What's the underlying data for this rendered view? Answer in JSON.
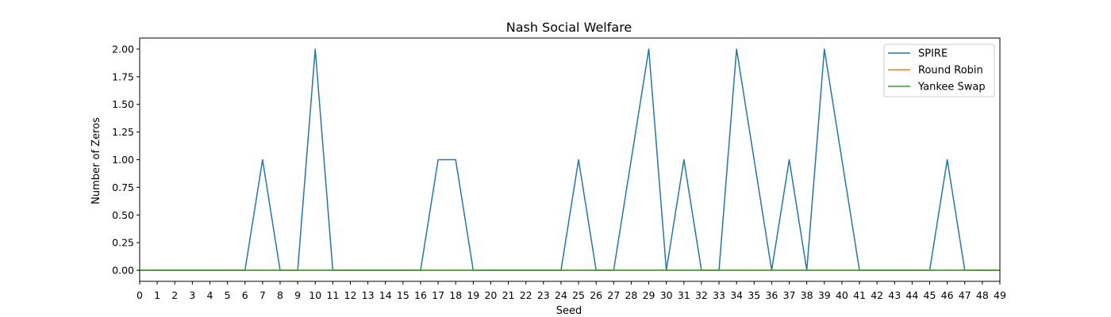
{
  "chart_data": {
    "type": "line",
    "title": "Nash Social Welfare",
    "xlabel": "Seed",
    "ylabel": "Number of Zeros",
    "xlim": [
      0,
      49
    ],
    "ylim": [
      -0.1,
      2.1
    ],
    "xticks": [
      0,
      1,
      2,
      3,
      4,
      5,
      6,
      7,
      8,
      9,
      10,
      11,
      12,
      13,
      14,
      15,
      16,
      17,
      18,
      19,
      20,
      21,
      22,
      23,
      24,
      25,
      26,
      27,
      28,
      29,
      30,
      31,
      32,
      33,
      34,
      35,
      36,
      37,
      38,
      39,
      40,
      41,
      42,
      43,
      44,
      45,
      46,
      47,
      48,
      49
    ],
    "yticks": [
      "0.00",
      "0.25",
      "0.50",
      "0.75",
      "1.00",
      "1.25",
      "1.50",
      "1.75",
      "2.00"
    ],
    "legend_position": "top-right",
    "grid": false,
    "x": [
      0,
      1,
      2,
      3,
      4,
      5,
      6,
      7,
      8,
      9,
      10,
      11,
      12,
      13,
      14,
      15,
      16,
      17,
      18,
      19,
      20,
      21,
      22,
      23,
      24,
      25,
      26,
      27,
      28,
      29,
      30,
      31,
      32,
      33,
      34,
      35,
      36,
      37,
      38,
      39,
      40,
      41,
      42,
      43,
      44,
      45,
      46,
      47,
      48,
      49
    ],
    "series": [
      {
        "name": "SPIRE",
        "color": "#1f77b4",
        "values": [
          0,
          0,
          0,
          0,
          0,
          0,
          0,
          1,
          0,
          0,
          2,
          0,
          0,
          0,
          0,
          0,
          0,
          1,
          1,
          0,
          0,
          0,
          0,
          0,
          0,
          1,
          0,
          0,
          1,
          2,
          0,
          1,
          0,
          0,
          2,
          1,
          0,
          1,
          0,
          2,
          1,
          0,
          0,
          0,
          0,
          0,
          1,
          0,
          0,
          0
        ]
      },
      {
        "name": "Round Robin",
        "color": "#ff7f0e",
        "values": [
          0,
          0,
          0,
          0,
          0,
          0,
          0,
          0,
          0,
          0,
          0,
          0,
          0,
          0,
          0,
          0,
          0,
          0,
          0,
          0,
          0,
          0,
          0,
          0,
          0,
          0,
          0,
          0,
          0,
          0,
          0,
          0,
          0,
          0,
          0,
          0,
          0,
          0,
          0,
          0,
          0,
          0,
          0,
          0,
          0,
          0,
          0,
          0,
          0,
          0
        ]
      },
      {
        "name": "Yankee Swap",
        "color": "#2ca02c",
        "values": [
          0,
          0,
          0,
          0,
          0,
          0,
          0,
          0,
          0,
          0,
          0,
          0,
          0,
          0,
          0,
          0,
          0,
          0,
          0,
          0,
          0,
          0,
          0,
          0,
          0,
          0,
          0,
          0,
          0,
          0,
          0,
          0,
          0,
          0,
          0,
          0,
          0,
          0,
          0,
          0,
          0,
          0,
          0,
          0,
          0,
          0,
          0,
          0,
          0,
          0
        ]
      }
    ]
  }
}
